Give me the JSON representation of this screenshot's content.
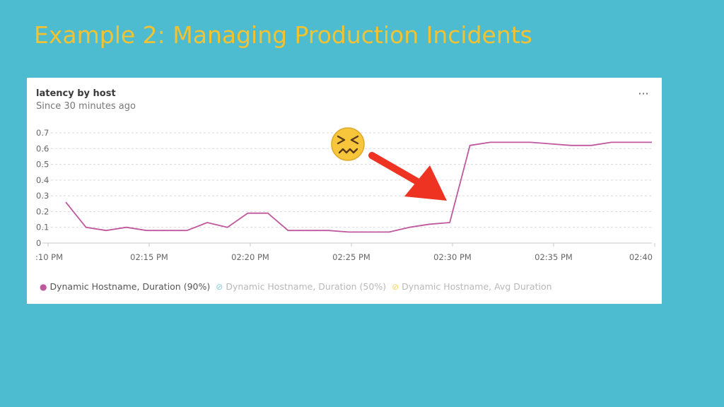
{
  "slide": {
    "title": "Example 2: Managing Production Incidents"
  },
  "panel": {
    "menu_icon": "more-icon",
    "menu_label": "···"
  },
  "chart_data": {
    "type": "line",
    "title": "latency by host",
    "subtitle": "Since 30 minutes ago",
    "xlabel": "",
    "ylabel": "",
    "ylim": [
      0,
      0.7
    ],
    "yticks": [
      "0",
      "0.1",
      "0.2",
      "0.3",
      "0.4",
      "0.5",
      "0.6",
      "0.7"
    ],
    "xticks": [
      ":10 PM",
      "02:15 PM",
      "02:20 PM",
      "02:25 PM",
      "02:30 PM",
      "02:35 PM",
      "02:40"
    ],
    "grid": true,
    "series": [
      {
        "name": "Dynamic Hostname, Duration (90%)",
        "color": "#c0589e",
        "x": [
          "02:11",
          "02:12",
          "02:13",
          "02:14",
          "02:15",
          "02:16",
          "02:17",
          "02:18",
          "02:19",
          "02:20",
          "02:21",
          "02:22",
          "02:23",
          "02:24",
          "02:25",
          "02:26",
          "02:27",
          "02:28",
          "02:29",
          "02:30",
          "02:31",
          "02:32",
          "02:33",
          "02:34",
          "02:35",
          "02:36",
          "02:37",
          "02:38",
          "02:39",
          "02:40"
        ],
        "values": [
          0.26,
          0.1,
          0.08,
          0.1,
          0.08,
          0.08,
          0.08,
          0.13,
          0.1,
          0.19,
          0.19,
          0.08,
          0.08,
          0.08,
          0.07,
          0.07,
          0.07,
          0.1,
          0.12,
          0.13,
          0.62,
          0.64,
          0.64,
          0.64,
          0.63,
          0.62,
          0.62,
          0.64,
          0.64,
          0.64
        ]
      },
      {
        "name": "Dynamic Hostname, Duration (50%)",
        "color": "#7fcfe0",
        "values": []
      },
      {
        "name": "Dynamic Hostname, Avg Duration",
        "color": "#f3d36b",
        "values": []
      }
    ]
  },
  "annotations": {
    "emoji_icon": "confounded-face-icon",
    "arrow_icon": "red-arrow-icon"
  }
}
